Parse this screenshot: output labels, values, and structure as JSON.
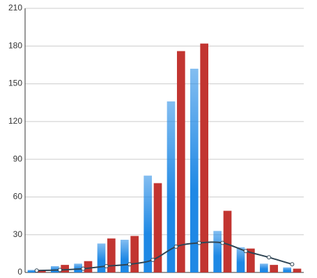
{
  "chart_data": {
    "type": "bar",
    "categories": [
      null,
      null,
      null,
      null,
      null,
      null,
      null,
      null,
      null,
      null,
      null,
      null
    ],
    "series": [
      {
        "type": "bar",
        "color": "#1e88e5",
        "gradient": true,
        "values": [
          2,
          5,
          7,
          23,
          26,
          77,
          136,
          162,
          33,
          20,
          7,
          4
        ]
      },
      {
        "type": "bar",
        "color": "#c23531",
        "values": [
          2,
          6,
          9,
          27,
          29,
          71,
          176,
          182,
          49,
          19,
          6,
          3
        ]
      },
      {
        "type": "line",
        "color": "#2f4554",
        "values": [
          1.5,
          2,
          3,
          5,
          6.5,
          10,
          20.5,
          23.5,
          23.5,
          17,
          12,
          6.5
        ]
      }
    ],
    "ylim": [
      0,
      210
    ],
    "yticks": [
      0,
      30,
      60,
      90,
      120,
      150,
      180,
      210
    ],
    "grid": true
  }
}
